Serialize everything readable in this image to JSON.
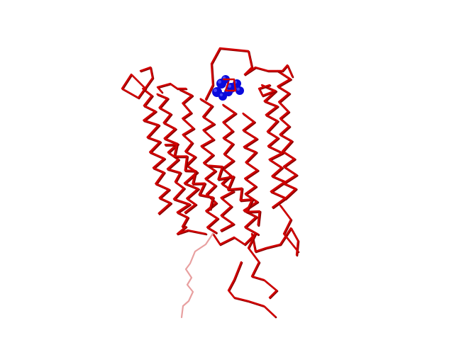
{
  "scene": {
    "subject": "protein-backbone-trace",
    "render_style": "ribbon-ca-trace",
    "background_color": "#ffffff",
    "colors": {
      "backbone": "#d10000",
      "backbone_dark": "#8a0000",
      "backbone_faded": "#e8a0a0",
      "ligand": "#0a0adc",
      "ligand_highlight": "#6060ff"
    }
  }
}
